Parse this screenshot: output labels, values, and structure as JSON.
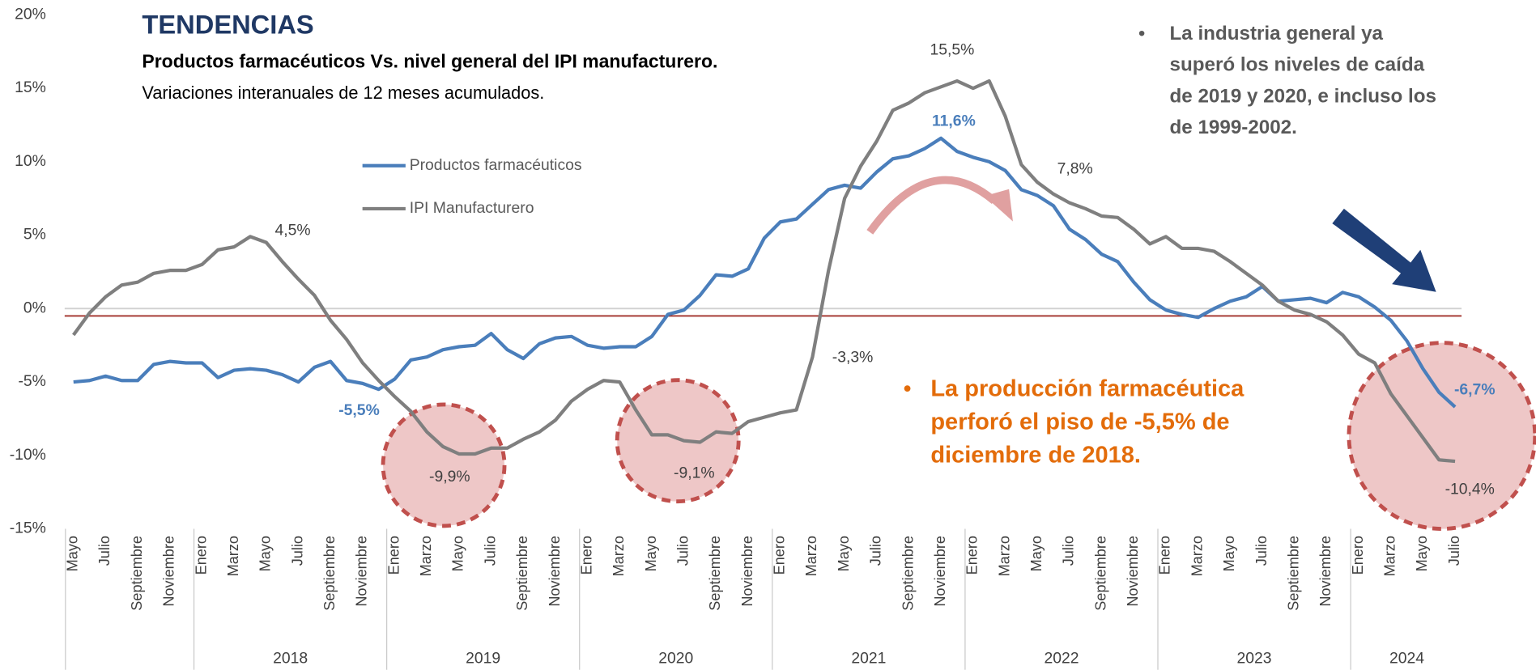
{
  "chart_data": {
    "type": "line",
    "title": "TENDENCIAS",
    "subtitle": "Productos farmacéuticos Vs. nivel general del IPI manufacturero.",
    "subtitle2": "Variaciones interanuales de 12 meses acumulados.",
    "annotations": [
      {
        "lines": [
          "La industria general ya",
          "superó los niveles de caída",
          "de 2019 y 2020, e incluso los",
          "de 1999-2002."
        ]
      },
      {
        "lines": [
          "La producción farmacéutica",
          "perforó el piso de -5,5% de",
          "diciembre de 2018."
        ]
      }
    ],
    "categories": [
      "Mayo",
      null,
      "Julio",
      null,
      "Septiembre",
      null,
      "Noviembre",
      null,
      "Enero",
      null,
      "Marzo",
      null,
      "Mayo",
      null,
      "Julio",
      null,
      "Septiembre",
      null,
      "Noviembre",
      null,
      "Enero",
      null,
      "Marzo",
      null,
      "Mayo",
      null,
      "Julio",
      null,
      "Septiembre",
      null,
      "Noviembre",
      null,
      "Enero",
      null,
      "Marzo",
      null,
      "Mayo",
      null,
      "Julio",
      null,
      "Septiembre",
      null,
      "Noviembre",
      null,
      "Enero",
      null,
      "Marzo",
      null,
      "Mayo",
      null,
      "Julio",
      null,
      "Septiembre",
      null,
      "Noviembre",
      null,
      "Enero",
      null,
      "Marzo",
      null,
      "Mayo",
      null,
      "Julio",
      null,
      "Septiembre",
      null,
      "Noviembre",
      null,
      "Enero",
      null,
      "Marzo",
      null,
      "Mayo",
      null,
      "Julio",
      null,
      "Septiembre",
      null,
      "Noviembre",
      null,
      "Enero",
      null,
      "Marzo",
      null,
      "Mayo",
      null,
      "Julio"
    ],
    "year_labels": [
      "2018",
      "2019",
      "2020",
      "2021",
      "2022",
      "2023",
      "2024"
    ],
    "series": [
      {
        "name": "Productos farmacéuticos",
        "color": "#4a7ebb",
        "values": [
          -5.0,
          -4.9,
          -4.6,
          -4.9,
          -4.9,
          -3.8,
          -3.6,
          -3.7,
          -3.7,
          -4.7,
          -4.2,
          -4.1,
          -4.2,
          -4.5,
          -5.0,
          -4.0,
          -3.6,
          -4.9,
          -5.1,
          -5.5,
          -4.8,
          -3.5,
          -3.3,
          -2.8,
          -2.6,
          -2.5,
          -1.7,
          -2.8,
          -3.4,
          -2.4,
          -2.0,
          -1.9,
          -2.5,
          -2.7,
          -2.6,
          -2.6,
          -1.9,
          -0.4,
          -0.1,
          0.9,
          2.3,
          2.2,
          2.7,
          4.8,
          5.9,
          6.1,
          7.1,
          8.1,
          8.4,
          8.2,
          9.3,
          10.2,
          10.4,
          10.9,
          11.6,
          10.7,
          10.3,
          10.0,
          9.4,
          8.1,
          7.7,
          7.0,
          5.4,
          4.7,
          3.7,
          3.2,
          1.8,
          0.6,
          -0.1,
          -0.4,
          -0.6,
          0.0,
          0.5,
          0.8,
          1.5,
          0.5,
          0.6,
          0.7,
          0.4,
          1.1,
          0.8,
          0.1,
          -0.8,
          -2.2,
          -4.1,
          -5.7,
          -6.7
        ],
        "value_labels": {
          "19": "-5,5%",
          "54": "11,6%",
          "86": "-6,7%"
        }
      },
      {
        "name": "IPI Manufacturero",
        "color": "#7f7f7f",
        "values": [
          -1.8,
          -0.3,
          0.8,
          1.6,
          1.8,
          2.4,
          2.6,
          2.6,
          3.0,
          4.0,
          4.2,
          4.9,
          4.5,
          3.2,
          2.0,
          0.9,
          -0.8,
          -2.1,
          -3.7,
          -4.9,
          -6.0,
          -7.0,
          -8.4,
          -9.4,
          -9.9,
          -9.9,
          -9.5,
          -9.5,
          -8.9,
          -8.4,
          -7.6,
          -6.3,
          -5.5,
          -4.9,
          -5.0,
          -6.9,
          -8.6,
          -8.6,
          -9.0,
          -9.1,
          -8.4,
          -8.5,
          -7.7,
          -7.4,
          -7.1,
          -6.9,
          -3.3,
          2.6,
          7.5,
          9.7,
          11.4,
          13.5,
          14.0,
          14.7,
          15.1,
          15.5,
          15.0,
          15.5,
          13.1,
          9.8,
          8.6,
          7.8,
          7.2,
          6.8,
          6.3,
          6.2,
          5.4,
          4.4,
          4.9,
          4.1,
          4.1,
          3.9,
          3.2,
          2.4,
          1.6,
          0.5,
          -0.1,
          -0.4,
          -0.9,
          -1.8,
          -3.1,
          -3.7,
          -5.8,
          -7.3,
          -8.8,
          -10.3,
          -10.4
        ],
        "value_labels": {
          "12": "4,5%",
          "25": "-9,9%",
          "39": "-9,1%",
          "46": "-3,3%",
          "55": "15,5%",
          "61": "7,8%",
          "86": "-10,4%"
        }
      }
    ],
    "ylim": [
      -15,
      20
    ],
    "yticks": [
      {
        "value": -15,
        "label": "-15%"
      },
      {
        "value": -10,
        "label": "-10%"
      },
      {
        "value": -5,
        "label": "-5%"
      },
      {
        "value": 0,
        "label": "0%"
      },
      {
        "value": 5,
        "label": "5%"
      },
      {
        "value": 10,
        "label": "10%"
      },
      {
        "value": 15,
        "label": "15%"
      },
      {
        "value": 20,
        "label": "20%"
      }
    ],
    "reference_line": {
      "value": -0.5,
      "color": "#a0302a"
    },
    "grid": false
  }
}
